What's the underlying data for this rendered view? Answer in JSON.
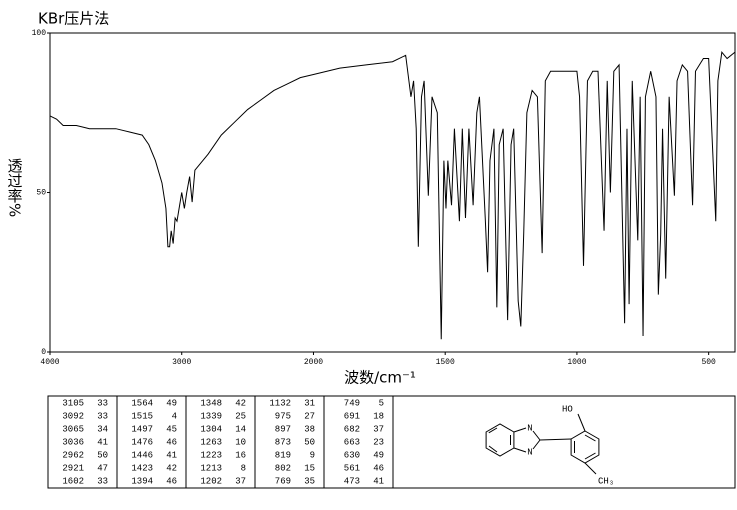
{
  "chart_data": {
    "type": "line",
    "title": "KBr压片法",
    "ylabel": "透过率%",
    "xlabel": "波数/cm⁻¹",
    "x": [
      4000,
      3950,
      3900,
      3800,
      3700,
      3600,
      3500,
      3400,
      3300,
      3250,
      3200,
      3150,
      3120,
      3105,
      3092,
      3080,
      3065,
      3050,
      3036,
      3000,
      2980,
      2962,
      2940,
      2921,
      2900,
      2800,
      2700,
      2600,
      2500,
      2400,
      2300,
      2200,
      2100,
      2000,
      1900,
      1800,
      1700,
      1650,
      1630,
      1620,
      1610,
      1602,
      1590,
      1580,
      1564,
      1550,
      1530,
      1515,
      1505,
      1497,
      1490,
      1476,
      1465,
      1446,
      1435,
      1423,
      1410,
      1394,
      1380,
      1370,
      1348,
      1339,
      1330,
      1315,
      1304,
      1295,
      1280,
      1263,
      1250,
      1240,
      1223,
      1213,
      1202,
      1190,
      1170,
      1150,
      1132,
      1120,
      1100,
      1050,
      1000,
      990,
      975,
      960,
      940,
      920,
      897,
      885,
      873,
      860,
      840,
      819,
      810,
      802,
      790,
      769,
      760,
      749,
      740,
      720,
      700,
      691,
      682,
      675,
      663,
      650,
      630,
      620,
      600,
      580,
      561,
      550,
      520,
      500,
      473,
      465,
      450,
      430,
      400
    ],
    "values": [
      74,
      73,
      71,
      71,
      70,
      70,
      70,
      69,
      68,
      65,
      60,
      53,
      45,
      33,
      33,
      38,
      34,
      42,
      41,
      50,
      45,
      50,
      55,
      47,
      57,
      62,
      68,
      72,
      76,
      79,
      82,
      84,
      86,
      87,
      89,
      90,
      91,
      93,
      80,
      85,
      70,
      33,
      80,
      85,
      49,
      80,
      75,
      4,
      60,
      45,
      60,
      46,
      70,
      41,
      70,
      42,
      70,
      46,
      75,
      80,
      42,
      25,
      60,
      70,
      14,
      65,
      70,
      10,
      65,
      70,
      16,
      8,
      37,
      75,
      82,
      80,
      31,
      85,
      88,
      88,
      88,
      80,
      27,
      85,
      88,
      88,
      38,
      85,
      50,
      88,
      90,
      9,
      70,
      15,
      85,
      35,
      80,
      5,
      80,
      88,
      80,
      18,
      37,
      70,
      23,
      80,
      49,
      85,
      90,
      88,
      46,
      88,
      92,
      92,
      41,
      85,
      94,
      92,
      94
    ],
    "color": "#000000",
    "xlim": [
      4000,
      400
    ],
    "xticks": [
      4000,
      3000,
      2000,
      1500,
      1000,
      500
    ],
    "ylim": [
      0,
      100
    ],
    "yticks": [
      0,
      50,
      100
    ],
    "grid": false
  },
  "peak_table": {
    "columns": [
      [
        [
          3105,
          33
        ],
        [
          3092,
          33
        ],
        [
          3065,
          34
        ],
        [
          3036,
          41
        ],
        [
          2962,
          50
        ],
        [
          2921,
          47
        ],
        [
          1602,
          33
        ]
      ],
      [
        [
          1564,
          49
        ],
        [
          1515,
          4
        ],
        [
          1497,
          45
        ],
        [
          1476,
          46
        ],
        [
          1446,
          41
        ],
        [
          1423,
          42
        ],
        [
          1394,
          46
        ]
      ],
      [
        [
          1348,
          42
        ],
        [
          1339,
          25
        ],
        [
          1304,
          14
        ],
        [
          1263,
          10
        ],
        [
          1223,
          16
        ],
        [
          1213,
          8
        ],
        [
          1202,
          37
        ]
      ],
      [
        [
          1132,
          31
        ],
        [
          975,
          27
        ],
        [
          897,
          38
        ],
        [
          873,
          50
        ],
        [
          819,
          9
        ],
        [
          802,
          15
        ],
        [
          769,
          35
        ]
      ],
      [
        [
          749,
          5
        ],
        [
          691,
          18
        ],
        [
          682,
          37
        ],
        [
          663,
          23
        ],
        [
          630,
          49
        ],
        [
          561,
          46
        ],
        [
          473,
          41
        ]
      ]
    ]
  },
  "structure": {
    "hydroxyl": "HO",
    "n_top": "N",
    "n_bottom": "N",
    "methyl": "CH₃"
  }
}
